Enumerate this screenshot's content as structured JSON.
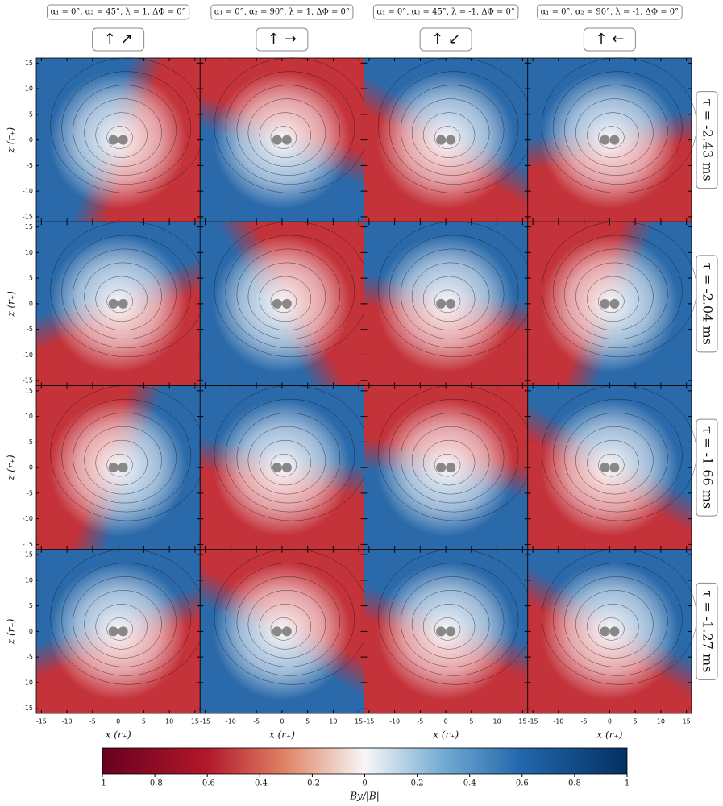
{
  "chart_data": {
    "type": "field-grid",
    "columns": [
      {
        "title": "α₁ = 0°, α₂ = 45°, λ = 1, ΔΦ = 0°",
        "arrows": "↑ ↗"
      },
      {
        "title": "α₁ = 0°, α₂ = 90°, λ = 1, ΔΦ = 0°",
        "arrows": "↑ →"
      },
      {
        "title": "α₁ = 0°, α₂ = 45°, λ = -1, ΔΦ = 0°",
        "arrows": "↑ ↙"
      },
      {
        "title": "α₁ = 0°, α₂ = 90°, λ = -1, ΔΦ = 0°",
        "arrows": "↑ ←"
      }
    ],
    "rows": [
      "τ = -2.43 ms",
      "τ = -2.04 ms",
      "τ = -1.66 ms",
      "τ = -1.27 ms"
    ],
    "xlabel": "x (r₊)",
    "ylabel": "z (r₊)",
    "xlim": [
      -16,
      16
    ],
    "xticks": [
      -15,
      -10,
      -5,
      0,
      5,
      10,
      15
    ],
    "ylim": [
      -16,
      16
    ],
    "yticks": [
      -15,
      -10,
      -5,
      0,
      5,
      10,
      15
    ],
    "colorbar": {
      "label": "By/|B|",
      "lim": [
        -1,
        1
      ],
      "ticks": [
        -1,
        -0.8,
        -0.6,
        -0.4,
        -0.2,
        0,
        0.2,
        0.4,
        0.6,
        0.8,
        1
      ]
    }
  }
}
